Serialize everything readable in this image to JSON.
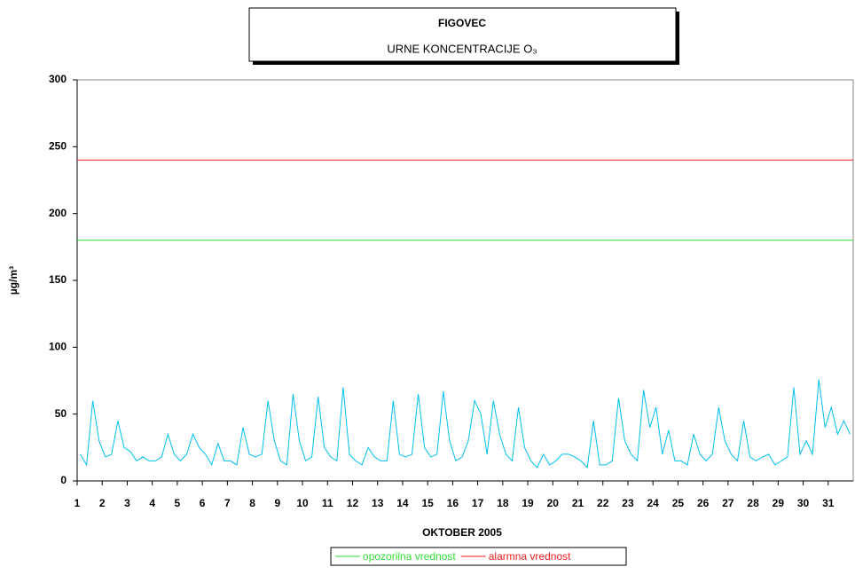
{
  "chart_data": {
    "type": "line",
    "title": "FIGOVEC",
    "subtitle": "URNE   KONCENTRACIJE O₃",
    "y_label": "µg/m³",
    "x_label": "OKTOBER  2005",
    "color": "#00bfef",
    "xlim": [
      1,
      32
    ],
    "xticks": [
      1,
      2,
      3,
      4,
      5,
      6,
      7,
      8,
      9,
      10,
      11,
      12,
      13,
      14,
      15,
      16,
      17,
      18,
      19,
      20,
      21,
      22,
      23,
      24,
      25,
      26,
      27,
      28,
      29,
      30,
      31
    ],
    "ylim": [
      0,
      300
    ],
    "yticks": [
      0,
      50,
      100,
      150,
      200,
      250,
      300
    ],
    "x": [
      1.125,
      1.375,
      1.625,
      1.875,
      2.125,
      2.375,
      2.625,
      2.875,
      3.125,
      3.375,
      3.625,
      3.875,
      4.125,
      4.375,
      4.625,
      4.875,
      5.125,
      5.375,
      5.625,
      5.875,
      6.125,
      6.375,
      6.625,
      6.875,
      7.125,
      7.375,
      7.625,
      7.875,
      8.125,
      8.375,
      8.625,
      8.875,
      9.125,
      9.375,
      9.625,
      9.875,
      10.125,
      10.375,
      10.625,
      10.875,
      11.125,
      11.375,
      11.625,
      11.875,
      12.125,
      12.375,
      12.625,
      12.875,
      13.125,
      13.375,
      13.625,
      13.875,
      14.125,
      14.375,
      14.625,
      14.875,
      15.125,
      15.375,
      15.625,
      15.875,
      16.125,
      16.375,
      16.625,
      16.875,
      17.125,
      17.375,
      17.625,
      17.875,
      18.125,
      18.375,
      18.625,
      18.875,
      19.125,
      19.375,
      19.625,
      19.875,
      20.125,
      20.375,
      20.625,
      20.875,
      21.125,
      21.375,
      21.625,
      21.875,
      22.125,
      22.375,
      22.625,
      22.875,
      23.125,
      23.375,
      23.625,
      23.875,
      24.125,
      24.375,
      24.625,
      24.875,
      25.125,
      25.375,
      25.625,
      25.875,
      26.125,
      26.375,
      26.625,
      26.875,
      27.125,
      27.375,
      27.625,
      27.875,
      28.125,
      28.375,
      28.625,
      28.875,
      29.125,
      29.375,
      29.625,
      29.875,
      30.125,
      30.375,
      30.625,
      30.875,
      31.125,
      31.375,
      31.625,
      31.875
    ],
    "values": [
      20,
      12,
      60,
      30,
      18,
      20,
      45,
      25,
      22,
      15,
      18,
      15,
      15,
      18,
      35,
      20,
      15,
      20,
      35,
      25,
      20,
      12,
      28,
      15,
      15,
      12,
      40,
      20,
      18,
      20,
      60,
      30,
      15,
      12,
      65,
      30,
      15,
      18,
      63,
      25,
      18,
      15,
      70,
      20,
      15,
      12,
      25,
      18,
      15,
      15,
      60,
      20,
      18,
      20,
      65,
      25,
      18,
      20,
      67,
      30,
      15,
      18,
      30,
      60,
      50,
      20,
      60,
      35,
      20,
      15,
      55,
      25,
      15,
      10,
      20,
      12,
      15,
      20,
      20,
      18,
      15,
      10,
      45,
      12,
      12,
      15,
      62,
      30,
      20,
      15,
      68,
      40,
      55,
      20,
      38,
      15,
      15,
      12,
      35,
      20,
      15,
      20,
      55,
      30,
      20,
      15,
      45,
      18,
      15,
      18,
      20,
      12,
      15,
      18,
      70,
      20,
      30,
      20,
      76,
      40,
      55,
      35,
      45,
      35
    ],
    "reference_lines": [
      {
        "name": "opozorilna  vrednost",
        "color": "#33dd33",
        "value": 180
      },
      {
        "name": "alarmna  vrednost",
        "color": "#ee2222",
        "value": 240
      }
    ]
  }
}
